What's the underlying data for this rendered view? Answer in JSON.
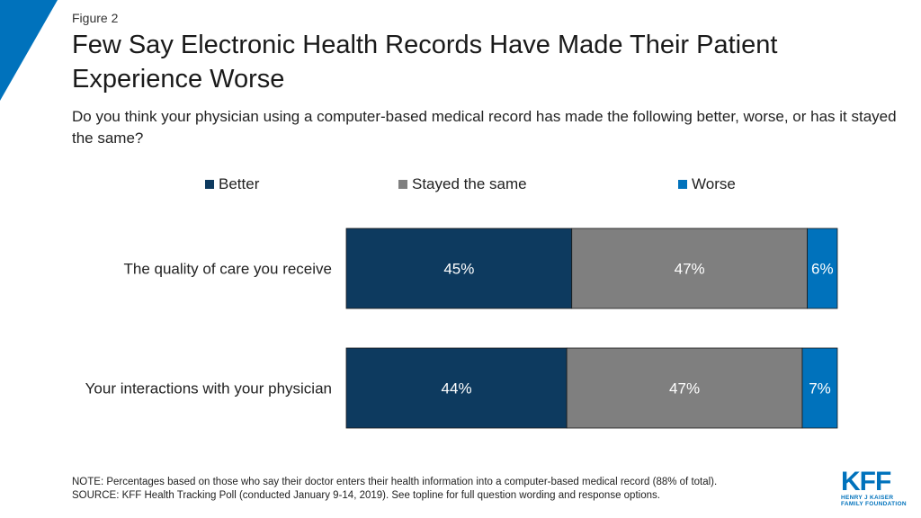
{
  "figure_label": "Figure 2",
  "title": "Few Say Electronic Health Records Have Made Their Patient Experience Worse",
  "subtitle": "Do you think your physician using a computer-based medical record has made the following better, worse, or has it stayed the same?",
  "colors": {
    "better": "#0d3a5f",
    "same": "#7f7f7f",
    "worse": "#0072bc",
    "accent_triangle": "#0072bc"
  },
  "legend": [
    {
      "label": "Better",
      "color": "#0d3a5f"
    },
    {
      "label": "Stayed the same",
      "color": "#7f7f7f"
    },
    {
      "label": "Worse",
      "color": "#0072bc"
    }
  ],
  "chart_data": {
    "type": "bar",
    "orientation": "horizontal",
    "stacked": true,
    "title": "Few Say Electronic Health Records Have Made Their Patient Experience Worse",
    "xlabel": "",
    "ylabel": "",
    "xlim": [
      0,
      98
    ],
    "grid": false,
    "legend_position": "top",
    "categories": [
      "The quality of care you receive",
      "Your interactions with your physician"
    ],
    "series": [
      {
        "name": "Better",
        "values": [
          45,
          44
        ],
        "labels": [
          "45%",
          "44%"
        ]
      },
      {
        "name": "Stayed the same",
        "values": [
          47,
          47
        ],
        "labels": [
          "47%",
          "47%"
        ]
      },
      {
        "name": "Worse",
        "values": [
          6,
          7
        ],
        "labels": [
          "6%",
          "7%"
        ]
      }
    ]
  },
  "footer": {
    "note": "NOTE: Percentages based on those who say their doctor enters their health information into a computer-based medical record (88% of total).",
    "source": "SOURCE: KFF Health Tracking Poll (conducted January 9-14, 2019). See topline for full question wording and response options."
  },
  "logo": {
    "mark": "KFF",
    "line1": "HENRY J KAISER",
    "line2": "FAMILY FOUNDATION"
  }
}
